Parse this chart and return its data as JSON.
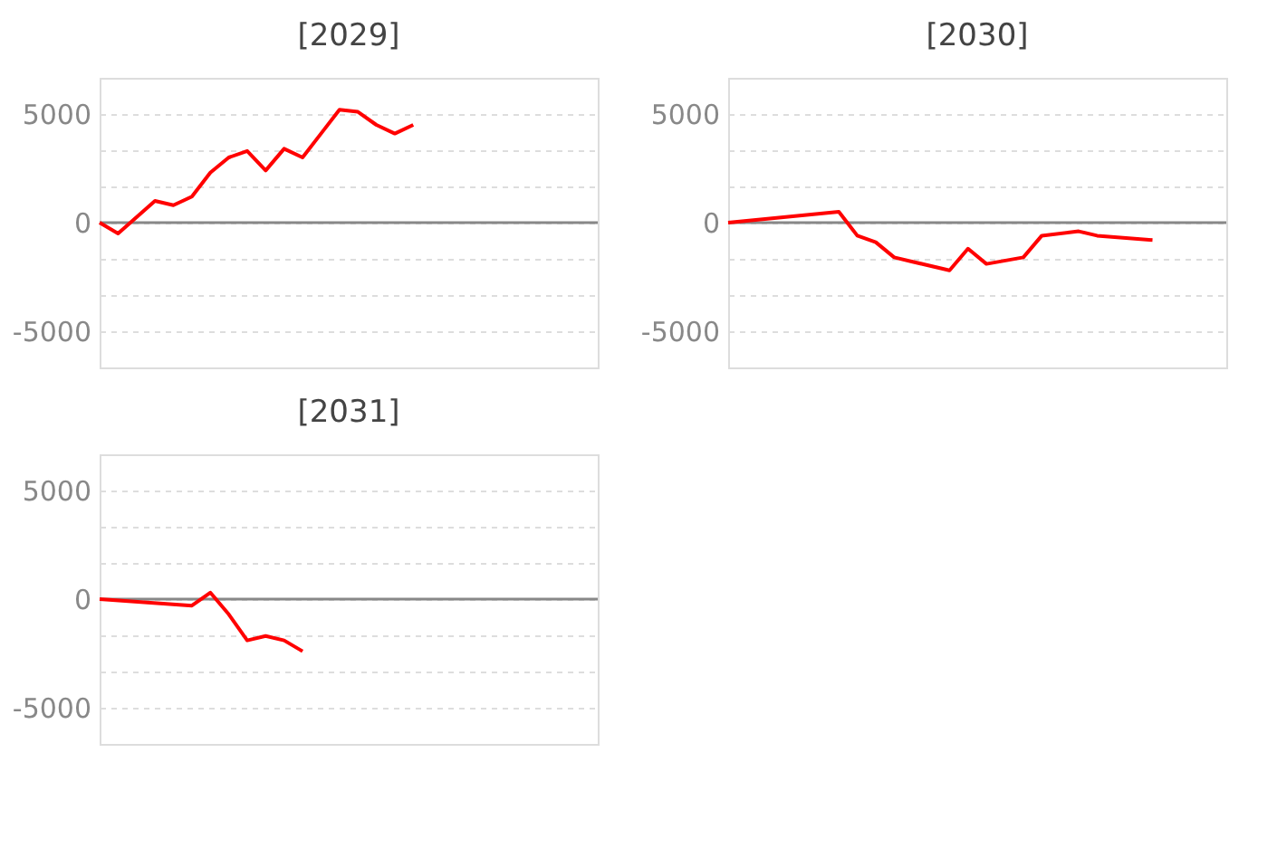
{
  "chart_data": [
    {
      "type": "line",
      "title": "[2029]",
      "categories": [
        null,
        null,
        null,
        null,
        null,
        null,
        null,
        null,
        null,
        null,
        null,
        null,
        null,
        null,
        null,
        null,
        null,
        null,
        null,
        null,
        null,
        null,
        null,
        null,
        null,
        null,
        null,
        null
      ],
      "ylim": [
        -6666.7,
        6666.7
      ],
      "yticks": [
        5000,
        {
          "value": 3333.3,
          "label": null
        },
        {
          "value": 1666.7,
          "label": null
        },
        0,
        {
          "value": -1666.7,
          "label": null
        },
        {
          "value": -3333.3,
          "label": null
        },
        -5000
      ],
      "grid": "y",
      "tick_labels": "y",
      "marker": "none",
      "line_style": "solid",
      "ref_lines": [
        {
          "axis": "y",
          "value": 0,
          "color": "#888888"
        }
      ],
      "series": [
        {
          "color": "#ff0000",
          "values": [
            0,
            -500,
            null,
            1000,
            800,
            1200,
            2300,
            3000,
            3300,
            2400,
            3400,
            3000,
            4100,
            5200,
            5100,
            4500,
            4100,
            4500,
            null,
            null,
            null,
            null,
            null,
            null,
            null,
            null,
            null,
            null
          ]
        }
      ]
    },
    {
      "type": "line",
      "title": "[2030]",
      "categories": [
        null,
        null,
        null,
        null,
        null,
        null,
        null,
        null,
        null,
        null,
        null,
        null,
        null,
        null,
        null,
        null,
        null,
        null,
        null,
        null,
        null,
        null,
        null,
        null,
        null,
        null,
        null,
        null
      ],
      "ylim": [
        -6666.7,
        6666.7
      ],
      "yticks": [
        5000,
        {
          "value": 3333.3,
          "label": null
        },
        {
          "value": 1666.7,
          "label": null
        },
        0,
        {
          "value": -1666.7,
          "label": null
        },
        {
          "value": -3333.3,
          "label": null
        },
        -5000
      ],
      "grid": "y",
      "tick_labels": "y",
      "marker": "none",
      "line_style": "solid",
      "ref_lines": [
        {
          "axis": "y",
          "value": 0,
          "color": "#888888"
        }
      ],
      "series": [
        {
          "color": "#ff0000",
          "values": [
            0,
            null,
            null,
            null,
            null,
            null,
            500,
            -600,
            -900,
            -1600,
            -1800,
            null,
            -2200,
            -1200,
            -1900,
            null,
            -1600,
            -600,
            null,
            -400,
            -600,
            null,
            null,
            -800,
            null,
            null,
            null,
            null
          ]
        }
      ]
    },
    {
      "type": "line",
      "title": "[2031]",
      "categories": [
        null,
        null,
        null,
        null,
        null,
        null,
        null,
        null,
        null,
        null,
        null,
        null,
        null,
        null,
        null,
        null,
        null,
        null,
        null,
        null,
        null,
        null,
        null,
        null,
        null,
        null,
        null,
        null
      ],
      "ylim": [
        -6666.7,
        6666.7
      ],
      "yticks": [
        5000,
        {
          "value": 3333.3,
          "label": null
        },
        {
          "value": 1666.7,
          "label": null
        },
        0,
        {
          "value": -1666.7,
          "label": null
        },
        {
          "value": -3333.3,
          "label": null
        },
        -5000
      ],
      "grid": "y",
      "tick_labels": "y",
      "marker": "none",
      "line_style": "solid",
      "ref_lines": [
        {
          "axis": "y",
          "value": 0,
          "color": "#888888"
        }
      ],
      "series": [
        {
          "color": "#ff0000",
          "values": [
            0,
            null,
            null,
            null,
            null,
            -300,
            300,
            -700,
            -1900,
            -1700,
            -1900,
            -2400,
            null,
            null,
            null,
            null,
            null,
            null,
            null,
            null,
            null,
            null,
            null,
            null,
            null,
            null,
            null,
            null
          ]
        }
      ]
    }
  ]
}
